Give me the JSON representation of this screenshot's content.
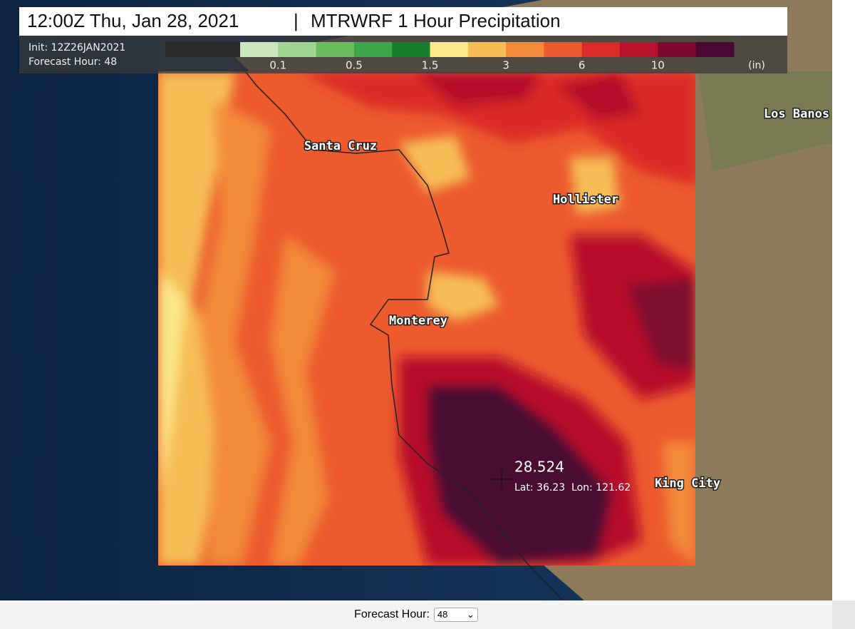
{
  "header": {
    "time": "12:00Z Thu, Jan 28, 2021",
    "separator": "|",
    "product": "MTRWRF 1 Hour Precipitation",
    "init": "Init: 12Z26JAN2021",
    "forecast_hour": "Forecast Hour: 48"
  },
  "legend": {
    "colors": [
      "#c9e6bf",
      "#9fd591",
      "#6cbd5f",
      "#3ea64a",
      "#157f2e",
      "#fbe98a",
      "#f6bd55",
      "#f38a3a",
      "#ec5a2e",
      "#db2b28",
      "#b8112b",
      "#7d0a2e",
      "#4a0833"
    ],
    "labels": [
      "0.1",
      "0.5",
      "1.5",
      "3",
      "6",
      "10"
    ],
    "unit": "(in)"
  },
  "cities": [
    "Santa Cruz",
    "Hollister",
    "Monterey",
    "King City",
    "Los Banos"
  ],
  "probe": {
    "value": "28.524",
    "location": "Lat: 36.23  Lon: 121.62"
  },
  "controls": {
    "label": "Forecast Hour:",
    "selected": "48"
  }
}
